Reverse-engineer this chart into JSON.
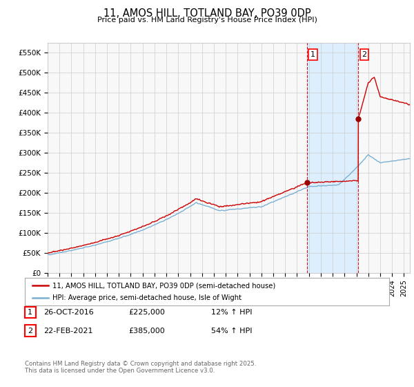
{
  "title": "11, AMOS HILL, TOTLAND BAY, PO39 0DP",
  "subtitle": "Price paid vs. HM Land Registry's House Price Index (HPI)",
  "ylabel_ticks": [
    "£0",
    "£50K",
    "£100K",
    "£150K",
    "£200K",
    "£250K",
    "£300K",
    "£350K",
    "£400K",
    "£450K",
    "£500K",
    "£550K"
  ],
  "ytick_values": [
    0,
    50000,
    100000,
    150000,
    200000,
    250000,
    300000,
    350000,
    400000,
    450000,
    500000,
    550000
  ],
  "ylim": [
    0,
    575000
  ],
  "xlim_start": 1995.0,
  "xlim_end": 2025.5,
  "sale1_date": 2016.82,
  "sale1_price": 225000,
  "sale1_label": "1",
  "sale2_date": 2021.15,
  "sale2_price": 385000,
  "sale2_label": "2",
  "hpi_color": "#7ab0d4",
  "price_color": "#cc0000",
  "sale_marker_color": "#990000",
  "dashed_line_color": "#cc0000",
  "shade_color": "#ddeeff",
  "grid_color": "#cccccc",
  "background_color": "#f8f8f8",
  "legend_entry1": "11, AMOS HILL, TOTLAND BAY, PO39 0DP (semi-detached house)",
  "legend_entry2": "HPI: Average price, semi-detached house, Isle of Wight",
  "table_row1": [
    "1",
    "26-OCT-2016",
    "£225,000",
    "12% ↑ HPI"
  ],
  "table_row2": [
    "2",
    "22-FEB-2021",
    "£385,000",
    "54% ↑ HPI"
  ],
  "footnote": "Contains HM Land Registry data © Crown copyright and database right 2025.\nThis data is licensed under the Open Government Licence v3.0."
}
